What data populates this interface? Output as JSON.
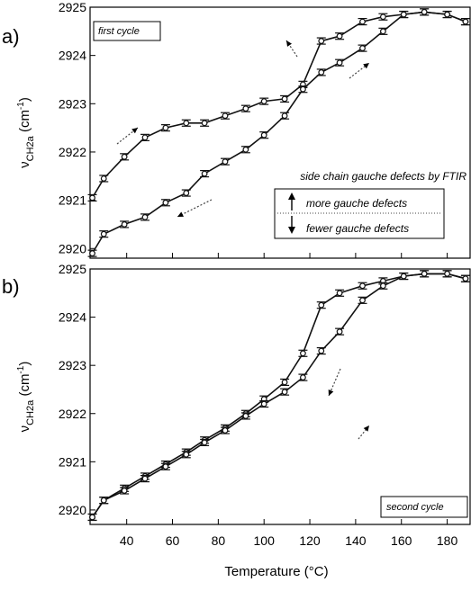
{
  "chart_data": [
    {
      "type": "line",
      "panel_label": "a)",
      "annotation": "first cycle",
      "xlabel": "Temperature (°C)",
      "ylabel": {
        "main": "ν",
        "sub": "CH2a",
        "unit_open": " (cm",
        "unit_sup": "-1",
        "unit_close": ")"
      },
      "xlim": [
        24,
        190
      ],
      "ylim": [
        2919.8,
        2925
      ],
      "x_ticks": [
        40,
        60,
        80,
        100,
        120,
        140,
        160,
        180
      ],
      "y_ticks": [
        2920,
        2921,
        2922,
        2923,
        2924,
        2925
      ],
      "legend": {
        "title": "side chain gauche defects by FTIR",
        "more_label": "more gauche defects",
        "fewer_label": "fewer gauche defects"
      },
      "series": [
        {
          "x": [
            25,
            30,
            39,
            48,
            57,
            66,
            74,
            83,
            92,
            100,
            109,
            117,
            125,
            133,
            143,
            152,
            161,
            170,
            180,
            188
          ],
          "y": [
            2921.05,
            2921.45,
            2921.9,
            2922.3,
            2922.5,
            2922.6,
            2922.6,
            2922.75,
            2922.9,
            2923.05,
            2923.1,
            2923.4,
            2924.3,
            2924.4,
            2924.7,
            2924.8,
            2924.85,
            2924.9,
            2924.85,
            2924.7
          ]
        },
        {
          "x": [
            25,
            30,
            39,
            48,
            57,
            66,
            74,
            83,
            92,
            100,
            109,
            117,
            125,
            133,
            143,
            152,
            161,
            170,
            180,
            188
          ],
          "y": [
            2919.9,
            2920.3,
            2920.5,
            2920.65,
            2920.95,
            2921.15,
            2921.55,
            2921.8,
            2922.05,
            2922.35,
            2922.75,
            2923.3,
            2923.65,
            2923.85,
            2924.15,
            2924.5,
            2924.85,
            2924.9,
            2924.85,
            2924.7
          ]
        }
      ]
    },
    {
      "type": "line",
      "panel_label": "b)",
      "annotation": "second cycle",
      "xlabel": "Temperature (°C)",
      "ylabel": {
        "main": "ν",
        "sub": "CH2a",
        "unit_open": " (cm",
        "unit_sup": "-1",
        "unit_close": ")"
      },
      "xlim": [
        24,
        190
      ],
      "ylim": [
        2919.7,
        2925
      ],
      "x_ticks": [
        40,
        60,
        80,
        100,
        120,
        140,
        160,
        180
      ],
      "y_ticks": [
        2920,
        2921,
        2922,
        2923,
        2924,
        2925
      ],
      "series": [
        {
          "x": [
            25,
            30,
            39,
            48,
            57,
            66,
            74,
            83,
            92,
            100,
            109,
            117,
            125,
            133,
            143,
            152,
            161,
            170,
            180,
            188
          ],
          "y": [
            2919.85,
            2920.2,
            2920.45,
            2920.7,
            2920.95,
            2921.2,
            2921.45,
            2921.7,
            2922.0,
            2922.3,
            2922.65,
            2923.25,
            2924.25,
            2924.5,
            2924.65,
            2924.75,
            2924.85,
            2924.9,
            2924.9,
            2924.8
          ]
        },
        {
          "x": [
            25,
            30,
            39,
            48,
            57,
            66,
            74,
            83,
            92,
            100,
            109,
            117,
            125,
            133,
            143,
            152,
            161,
            170,
            180,
            188
          ],
          "y": [
            2919.85,
            2920.2,
            2920.4,
            2920.65,
            2920.9,
            2921.15,
            2921.4,
            2921.65,
            2921.95,
            2922.2,
            2922.45,
            2922.75,
            2923.3,
            2923.7,
            2924.35,
            2924.65,
            2924.85,
            2924.9,
            2924.9,
            2924.8
          ]
        }
      ]
    }
  ]
}
